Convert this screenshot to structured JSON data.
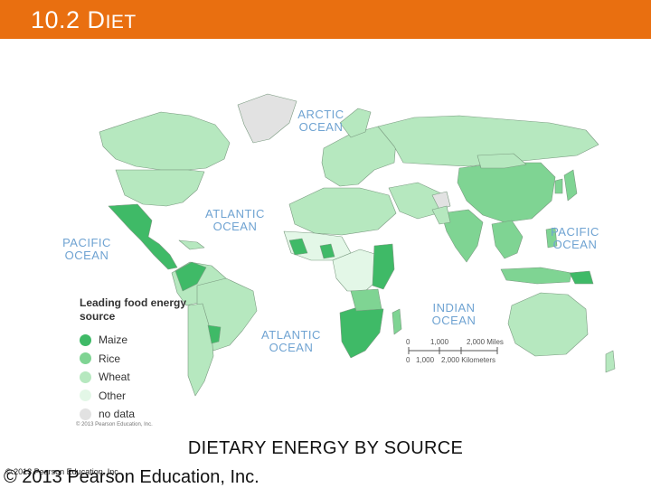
{
  "slide": {
    "title_prefix": "10.2 D",
    "title_rest": "IET",
    "caption": "DIETARY ENERGY BY SOURCE",
    "footer_small": "© 2013 Pearson Education, Inc.",
    "footer_big": "© 2013 Pearson Education, Inc."
  },
  "map": {
    "oceans": {
      "arctic": "ARCTIC OCEAN",
      "atlantic_north": "ATLANTIC OCEAN",
      "pacific_west": "PACIFIC OCEAN",
      "pacific_east": "PACIFIC OCEAN",
      "indian": "INDIAN OCEAN",
      "atlantic_south": "ATLANTIC OCEAN"
    },
    "legend": {
      "title": "Leading food energy source",
      "items": [
        {
          "label": "Maize",
          "color": "#3fba67"
        },
        {
          "label": "Rice",
          "color": "#7fd493"
        },
        {
          "label": "Wheat",
          "color": "#b6e8bf"
        },
        {
          "label": "Other",
          "color": "#e3f7e7"
        },
        {
          "label": "no data",
          "color": "#e2e2e2"
        }
      ]
    },
    "scale": {
      "miles_ticks": [
        "0",
        "1,000",
        "2,000 Miles"
      ],
      "km_ticks": [
        "0",
        "1,000",
        "2,000 Kilometers"
      ]
    },
    "copyright": "© 2013 Pearson Education, Inc."
  },
  "colors": {
    "header": "#e96f10",
    "ocean_text": "#6fa3d2",
    "maize": "#3fba67",
    "rice": "#7fd493",
    "wheat": "#b6e8bf",
    "other": "#e3f7e7",
    "no_data": "#e2e2e2"
  }
}
